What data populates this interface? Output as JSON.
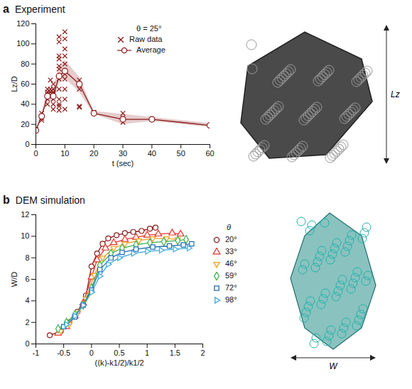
{
  "chart_data": [
    {
      "panel": "a",
      "title": "Experiment",
      "type": "scatter",
      "x_label": "t (sec)",
      "y_label": "Lz/D",
      "legend_title": "θ = 25°",
      "legend": "top-right",
      "xlim": [
        0,
        60
      ],
      "xticks": [
        0,
        10,
        20,
        30,
        40,
        50,
        60
      ],
      "ylim": [
        0,
        120
      ],
      "yticks": [
        0,
        20,
        40,
        60,
        80,
        100,
        120
      ],
      "annotations": [
        "Lz"
      ],
      "series": [
        {
          "name": "Raw data",
          "type": "scatter",
          "marker": "times",
          "color": "#8b1a1a",
          "x": [
            0,
            0,
            2,
            2,
            2,
            2,
            4,
            4,
            4,
            4,
            4,
            4,
            5,
            5,
            5,
            6,
            6,
            6,
            6,
            6,
            6,
            6,
            6,
            8,
            8,
            8,
            8,
            8,
            8,
            8,
            8,
            8,
            8,
            8,
            8,
            10,
            10,
            10,
            10,
            10,
            10,
            10,
            10,
            10,
            10,
            10,
            15,
            15,
            15,
            15,
            15,
            20,
            30,
            30,
            30,
            40,
            60
          ],
          "values": [
            14,
            15,
            24,
            26,
            28,
            31,
            40,
            45,
            48,
            50,
            52,
            55,
            64,
            55,
            52,
            35,
            40,
            45,
            48,
            50,
            52,
            55,
            60,
            34,
            38,
            40,
            45,
            55,
            65,
            75,
            78,
            85,
            88,
            102,
            107,
            35,
            45,
            55,
            65,
            70,
            73,
            80,
            88,
            95,
            105,
            112,
            38,
            37,
            55,
            60,
            64,
            32,
            31,
            26,
            22,
            25,
            19
          ]
        },
        {
          "name": "Average",
          "type": "line",
          "marker": "circle",
          "color": "#8b1a1a",
          "x": [
            0,
            2,
            4,
            6,
            8,
            10,
            15,
            20,
            30,
            40,
            60
          ],
          "values": [
            14,
            28,
            48,
            48,
            68,
            73,
            60,
            31,
            25,
            25,
            19
          ],
          "lower": [
            12,
            25,
            43,
            42,
            60,
            66,
            52,
            30,
            20,
            23,
            17
          ],
          "upper": [
            16,
            31,
            53,
            55,
            76,
            84,
            67,
            33,
            30,
            27,
            21
          ]
        }
      ]
    },
    {
      "panel": "b",
      "title": "DEM simulation",
      "type": "line",
      "x_label": "(⟨k⟩-k1/2)/k1/2",
      "y_label": "W/D",
      "legend_title": "θ",
      "legend": "right",
      "xlim": [
        -1,
        2
      ],
      "xticks": [
        -1,
        -0.5,
        0,
        0.5,
        1,
        1.5,
        2
      ],
      "ylim": [
        0,
        12
      ],
      "yticks": [
        0,
        2,
        4,
        6,
        8,
        10,
        12
      ],
      "annotations": [
        "W"
      ],
      "series": [
        {
          "name": "20°",
          "color": "#8b1a1a",
          "marker": "circle",
          "x": [
            -0.75,
            -0.55,
            -0.4,
            -0.25,
            -0.1,
            0,
            0.1,
            0.2,
            0.3,
            0.45,
            0.6,
            0.75,
            0.9,
            1.05,
            1.15
          ],
          "values": [
            0.8,
            1.2,
            2.0,
            3.0,
            4.5,
            7.2,
            8.4,
            9.3,
            9.8,
            10.1,
            10.3,
            10.4,
            10.5,
            10.7,
            10.8
          ]
        },
        {
          "name": "33°",
          "color": "#e8322a",
          "marker": "triangle-up",
          "x": [
            -0.6,
            -0.45,
            -0.3,
            -0.15,
            0,
            0.1,
            0.25,
            0.4,
            0.6,
            0.8,
            1.0,
            1.2,
            1.45,
            1.6
          ],
          "values": [
            1.0,
            1.6,
            2.6,
            3.8,
            6.2,
            7.8,
            8.9,
            9.4,
            9.7,
            9.9,
            10.1,
            10.2,
            10.3,
            10.2
          ]
        },
        {
          "name": "46°",
          "color": "#f0a020",
          "marker": "triangle-down",
          "x": [
            -0.55,
            -0.4,
            -0.25,
            -0.1,
            0.05,
            0.2,
            0.4,
            0.6,
            0.85,
            1.1,
            1.35,
            1.55
          ],
          "values": [
            1.2,
            1.8,
            2.9,
            4.2,
            6.4,
            8.0,
            8.9,
            9.3,
            9.6,
            9.8,
            9.8,
            9.7
          ]
        },
        {
          "name": "59°",
          "color": "#3cb34a",
          "marker": "diamond",
          "x": [
            -0.6,
            -0.45,
            -0.3,
            -0.15,
            0,
            0.15,
            0.35,
            0.55,
            0.8,
            1.05,
            1.3,
            1.55,
            1.7
          ],
          "values": [
            1.4,
            2.0,
            2.7,
            3.6,
            5.2,
            7.3,
            8.4,
            8.9,
            9.2,
            9.4,
            9.5,
            9.6,
            9.7
          ]
        },
        {
          "name": "72°",
          "color": "#1f6fb5",
          "marker": "square",
          "x": [
            -0.5,
            -0.3,
            -0.15,
            0,
            0.15,
            0.35,
            0.55,
            0.8,
            1.1,
            1.4,
            1.65,
            1.8
          ],
          "values": [
            1.6,
            2.5,
            3.6,
            5.0,
            6.9,
            8.0,
            8.5,
            8.8,
            9.0,
            9.1,
            9.2,
            9.3
          ]
        },
        {
          "name": "98°",
          "color": "#3aa8e0",
          "marker": "triangle-right",
          "x": [
            -0.45,
            -0.3,
            -0.15,
            0,
            0.15,
            0.3,
            0.5,
            0.75,
            1.0,
            1.25,
            1.5,
            1.75
          ],
          "values": [
            1.8,
            2.6,
            3.6,
            4.8,
            6.3,
            7.4,
            8.0,
            8.4,
            8.6,
            8.7,
            8.8,
            8.9
          ]
        }
      ]
    }
  ]
}
